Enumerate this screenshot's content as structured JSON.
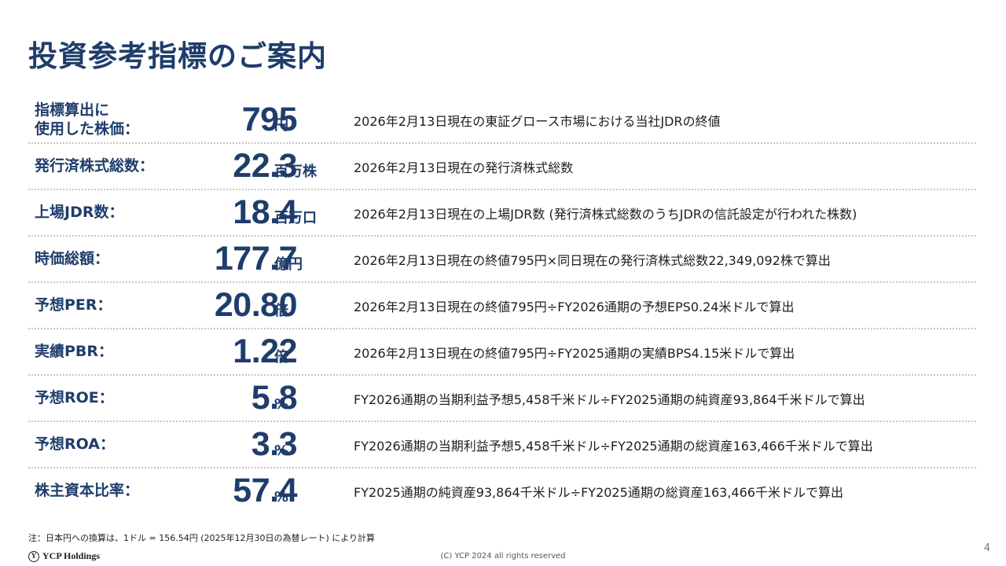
{
  "title": "投資参考指標のご案内",
  "rows": [
    {
      "label_line1": "指標算出に",
      "label_line2": "使用した株価：",
      "value": "795",
      "unit": "円",
      "desc": "2026年2月13日現在の東証グロース市場における当社JDRの終値"
    },
    {
      "label": "発行済株式総数：",
      "value": "22.3",
      "unit": "百万株",
      "desc": "2026年2月13日現在の発行済株式総数"
    },
    {
      "label": "上場JDR数：",
      "value": "18.4",
      "unit": "百万口",
      "desc": "2026年2月13日現在の上場JDR数 (発行済株式総数のうちJDRの信託設定が行われた株数)"
    },
    {
      "label": "時価総額：",
      "value": "177.7",
      "unit": "億円",
      "desc": "2026年2月13日現在の終値795円×同日現在の発行済株式総数22,349,092株で算出"
    },
    {
      "label": "予想PER：",
      "value": "20.80",
      "unit": "倍",
      "desc": "2026年2月13日現在の終値795円÷FY2026通期の予想EPS0.24米ドルで算出"
    },
    {
      "label": "実績PBR：",
      "value": "1.22",
      "unit": "倍",
      "desc": "2026年2月13日現在の終値795円÷FY2025通期の実績BPS4.15米ドルで算出"
    },
    {
      "label": "予想ROE：",
      "value": "5.8",
      "unit": "%",
      "desc": "FY2026通期の当期利益予想5,458千米ドル÷FY2025通期の純資産93,864千米ドルで算出"
    },
    {
      "label": "予想ROA：",
      "value": "3.3",
      "unit": "%",
      "desc": "FY2026通期の当期利益予想5,458千米ドル÷FY2025通期の総資産163,466千米ドルで算出"
    },
    {
      "label": "株主資本比率：",
      "value": "57.4",
      "unit": "%",
      "desc": "FY2025通期の純資産93,864千米ドル÷FY2025通期の総資産163,466千米ドルで算出"
    }
  ],
  "note": "注：日本円への換算は、1ドル = 156.54円 (2025年12月30日の為替レート) により計算",
  "footer": {
    "logo_text": "YCP Holdings",
    "logo_mark": "Y",
    "copyright": "(C) YCP 2024 all rights reserved",
    "page_number": "4"
  },
  "colors": {
    "accent": "#1f3d6b"
  }
}
